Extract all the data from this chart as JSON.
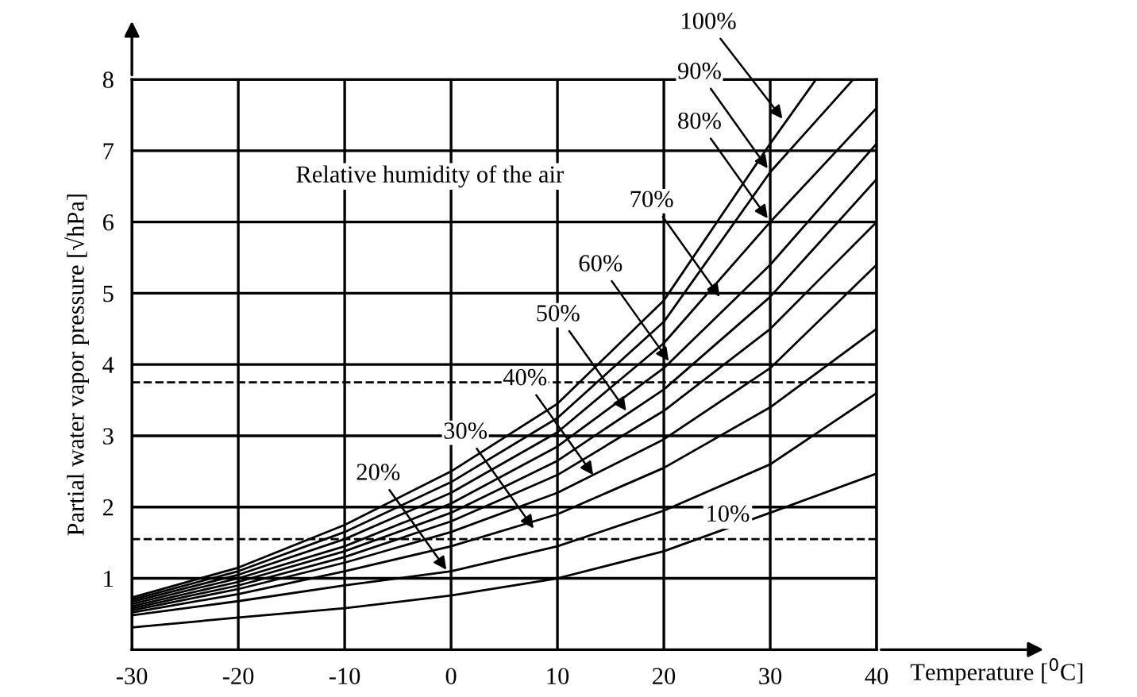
{
  "chart_data": {
    "type": "line",
    "xlabel": "Temperature [$^{0}$C]",
    "ylabel": "Partial water vapor pressure [√hPa]",
    "xlim": [
      -30,
      40
    ],
    "ylim": [
      0,
      8
    ],
    "xticks": [
      -30,
      -20,
      -10,
      0,
      10,
      20,
      30,
      40
    ],
    "yticks": [
      1,
      2,
      3,
      4,
      5,
      6,
      7,
      8
    ],
    "grid": true,
    "line_style": "solid",
    "marker": "none",
    "series": [
      {
        "color": "#000000",
        "x": [
          -30,
          -20,
          -10,
          0,
          10,
          20,
          30,
          34.3
        ],
        "values": [
          0.73,
          1.15,
          1.75,
          2.5,
          3.45,
          4.9,
          7.1,
          8
        ]
      },
      {
        "color": "#000000",
        "x": [
          -30,
          -20,
          -10,
          0,
          10,
          20,
          30,
          37.8
        ],
        "values": [
          0.7,
          1.1,
          1.65,
          2.35,
          3.25,
          4.6,
          6.7,
          8
        ]
      },
      {
        "color": "#000000",
        "x": [
          -30,
          -20,
          -10,
          0,
          10,
          20,
          30,
          40
        ],
        "values": [
          0.67,
          1.05,
          1.55,
          2.2,
          3.05,
          4.3,
          6.0,
          7.6
        ]
      },
      {
        "color": "#000000",
        "x": [
          -30,
          -20,
          -10,
          0,
          10,
          20,
          30,
          40
        ],
        "values": [
          0.64,
          1.0,
          1.45,
          2.05,
          2.85,
          3.95,
          5.4,
          7.1
        ]
      },
      {
        "color": "#000000",
        "x": [
          -30,
          -20,
          -10,
          0,
          10,
          20,
          30,
          40
        ],
        "values": [
          0.61,
          0.95,
          1.38,
          1.92,
          2.65,
          3.65,
          4.95,
          6.6
        ]
      },
      {
        "color": "#000000",
        "x": [
          -30,
          -20,
          -10,
          0,
          10,
          20,
          30,
          40
        ],
        "values": [
          0.58,
          0.9,
          1.3,
          1.8,
          2.45,
          3.35,
          4.5,
          6.0
        ]
      },
      {
        "color": "#000000",
        "x": [
          -30,
          -20,
          -10,
          0,
          10,
          20,
          30,
          40
        ],
        "values": [
          0.55,
          0.85,
          1.22,
          1.65,
          2.2,
          2.95,
          3.95,
          5.4
        ]
      },
      {
        "color": "#000000",
        "x": [
          -30,
          -20,
          -10,
          0,
          10,
          20,
          30,
          40
        ],
        "values": [
          0.52,
          0.78,
          1.1,
          1.45,
          1.9,
          2.55,
          3.4,
          4.5
        ]
      },
      {
        "color": "#000000",
        "x": [
          -30,
          -20,
          -10,
          0,
          10,
          20,
          30,
          40
        ],
        "values": [
          0.48,
          0.68,
          0.9,
          1.1,
          1.45,
          1.95,
          2.6,
          3.6
        ]
      },
      {
        "color": "#000000",
        "x": [
          -30,
          -20,
          -10,
          0,
          10,
          20,
          30,
          40
        ],
        "values": [
          0.31,
          0.45,
          0.58,
          0.76,
          1.0,
          1.38,
          1.92,
          2.47
        ]
      }
    ],
    "ref_lines": [
      {
        "axis": "y",
        "value": 3.75,
        "label": null,
        "line_style": "dashed",
        "color": "#000000"
      },
      {
        "axis": "y",
        "value": 1.55,
        "label": null,
        "line_style": "dashed",
        "color": "#000000"
      }
    ],
    "annotations": [
      "Relative humidity of the air",
      {
        "text": "100%",
        "x": 31.4,
        "y": 7.4
      },
      {
        "text": "90%",
        "x": 30,
        "y": 6.7
      },
      {
        "text": "80%",
        "x": 30,
        "y": 6.0
      },
      {
        "text": "70%",
        "x": 25.5,
        "y": 4.9
      },
      {
        "text": "60%",
        "x": 20.7,
        "y": 4.0
      },
      {
        "text": "50%",
        "x": 16.7,
        "y": 3.3
      },
      {
        "text": "40%",
        "x": 13.6,
        "y": 2.4
      },
      {
        "text": "30%",
        "x": 8,
        "y": 1.65
      },
      {
        "text": "20%",
        "x": -0.2,
        "y": 1.07
      },
      "10%"
    ]
  }
}
